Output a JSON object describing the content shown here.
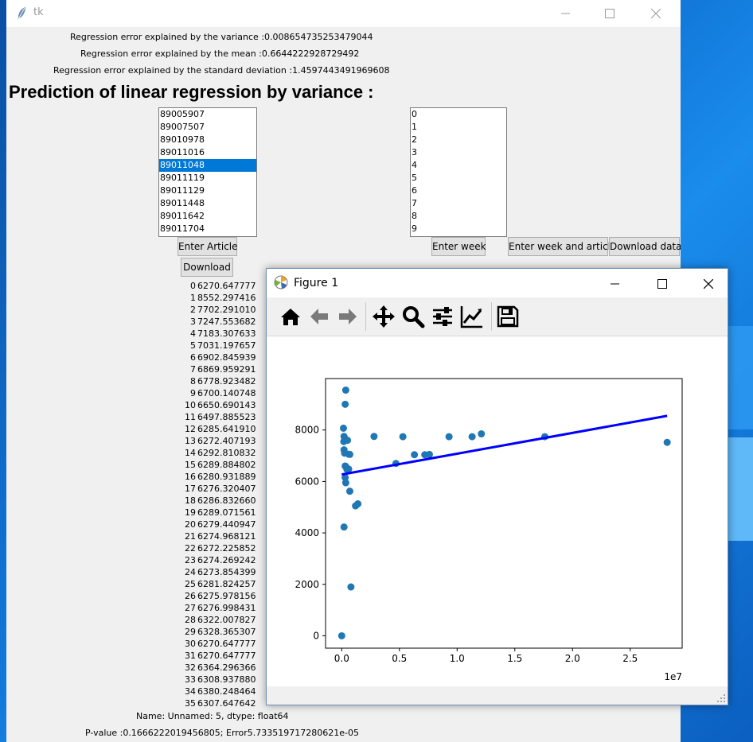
{
  "window": {
    "title": "tk"
  },
  "info": {
    "variance_line": "Regression error explained by the variance :0.008654735253479044",
    "mean_line": "Regression error explained by the mean :0.6644222928729492",
    "std_line": "Regression error explained by the standard deviation :1.4597443491969608"
  },
  "heading": "Prediction of linear regression by variance :",
  "articles": {
    "items": [
      "89005907",
      "89007507",
      "89010978",
      "89011016",
      "89011048",
      "89011119",
      "89011129",
      "89011448",
      "89011642",
      "89011704"
    ],
    "selected": "89011048"
  },
  "weeks": {
    "items": [
      "0",
      "1",
      "2",
      "3",
      "4",
      "5",
      "6",
      "7",
      "8",
      "9"
    ]
  },
  "buttons": {
    "enter_article": "Enter Article",
    "download": "Download",
    "enter_week": "Enter week",
    "enter_week_and_article": "Enter week and article",
    "download_data": "Download data"
  },
  "series": [
    [
      "0",
      "6270.647777"
    ],
    [
      "1",
      "8552.297416"
    ],
    [
      "2",
      "7702.291010"
    ],
    [
      "3",
      "7247.553682"
    ],
    [
      "4",
      "7183.307633"
    ],
    [
      "5",
      "7031.197657"
    ],
    [
      "6",
      "6902.845939"
    ],
    [
      "7",
      "6869.959291"
    ],
    [
      "8",
      "6778.923482"
    ],
    [
      "9",
      "6700.140748"
    ],
    [
      "10",
      "6650.690143"
    ],
    [
      "11",
      "6497.885523"
    ],
    [
      "12",
      "6285.641910"
    ],
    [
      "13",
      "6272.407193"
    ],
    [
      "14",
      "6292.810832"
    ],
    [
      "15",
      "6289.884802"
    ],
    [
      "16",
      "6280.931889"
    ],
    [
      "17",
      "6276.320407"
    ],
    [
      "18",
      "6286.832660"
    ],
    [
      "19",
      "6289.071561"
    ],
    [
      "20",
      "6279.440947"
    ],
    [
      "21",
      "6274.968121"
    ],
    [
      "22",
      "6272.225852"
    ],
    [
      "23",
      "6274.269242"
    ],
    [
      "24",
      "6273.854399"
    ],
    [
      "25",
      "6281.824257"
    ],
    [
      "26",
      "6275.978156"
    ],
    [
      "27",
      "6276.998431"
    ],
    [
      "28",
      "6322.007827"
    ],
    [
      "29",
      "6328.365307"
    ],
    [
      "30",
      "6270.647777"
    ],
    [
      "31",
      "6270.647777"
    ],
    [
      "32",
      "6364.296366"
    ],
    [
      "33",
      "6308.937880"
    ],
    [
      "34",
      "6380.248464"
    ],
    [
      "35",
      "6307.647642"
    ]
  ],
  "series_footer": "Name: Unnamed: 5, dtype: float64",
  "pvalue_line": "P-value :0.1666222019456805;  Error5.733519717280621e-05",
  "figure": {
    "title": "Figure 1",
    "tools": [
      "home-icon",
      "back-icon",
      "forward-icon",
      "pan-icon",
      "zoom-icon",
      "configure-subplots-icon",
      "edit-axis-icon",
      "save-icon"
    ]
  },
  "chart_data": {
    "type": "scatter",
    "title": "",
    "xlabel": "",
    "ylabel": "",
    "x_offset_label": "1e7",
    "xlim": [
      -0.14,
      2.95
    ],
    "ylim": [
      -480,
      10000
    ],
    "xticks": [
      0.0,
      0.5,
      1.0,
      1.5,
      2.0,
      2.5
    ],
    "xtick_labels": [
      "0.0",
      "0.5",
      "1.0",
      "1.5",
      "2.0",
      "2.5"
    ],
    "yticks": [
      0,
      2000,
      4000,
      6000,
      8000
    ],
    "ytick_labels": [
      "0",
      "2000",
      "4000",
      "6000",
      "8000"
    ],
    "grid": false,
    "point_color": "#1f77b4",
    "line_color": "#0000ff",
    "points": [
      [
        0.0,
        0
      ],
      [
        0.02,
        4230
      ],
      [
        0.02,
        7750
      ],
      [
        0.015,
        8070
      ],
      [
        0.018,
        7550
      ],
      [
        0.02,
        7230
      ],
      [
        0.025,
        7100
      ],
      [
        0.03,
        6600
      ],
      [
        0.035,
        6580
      ],
      [
        0.03,
        6150
      ],
      [
        0.035,
        5950
      ],
      [
        0.04,
        7620
      ],
      [
        0.05,
        7600
      ],
      [
        0.06,
        7060
      ],
      [
        0.07,
        7050
      ],
      [
        0.03,
        9000
      ],
      [
        0.035,
        9550
      ],
      [
        0.045,
        6470
      ],
      [
        0.06,
        6480
      ],
      [
        0.07,
        5620
      ],
      [
        0.08,
        1900
      ],
      [
        0.12,
        5050
      ],
      [
        0.14,
        5130
      ],
      [
        0.28,
        7750
      ],
      [
        0.47,
        6700
      ],
      [
        0.53,
        7740
      ],
      [
        0.63,
        7040
      ],
      [
        0.72,
        7040
      ],
      [
        0.76,
        7050
      ],
      [
        0.93,
        7740
      ],
      [
        1.13,
        7740
      ],
      [
        1.21,
        7850
      ],
      [
        1.76,
        7740
      ],
      [
        2.82,
        7520
      ]
    ],
    "regression_line": [
      [
        0.0,
        6270
      ],
      [
        2.82,
        8550
      ]
    ]
  }
}
